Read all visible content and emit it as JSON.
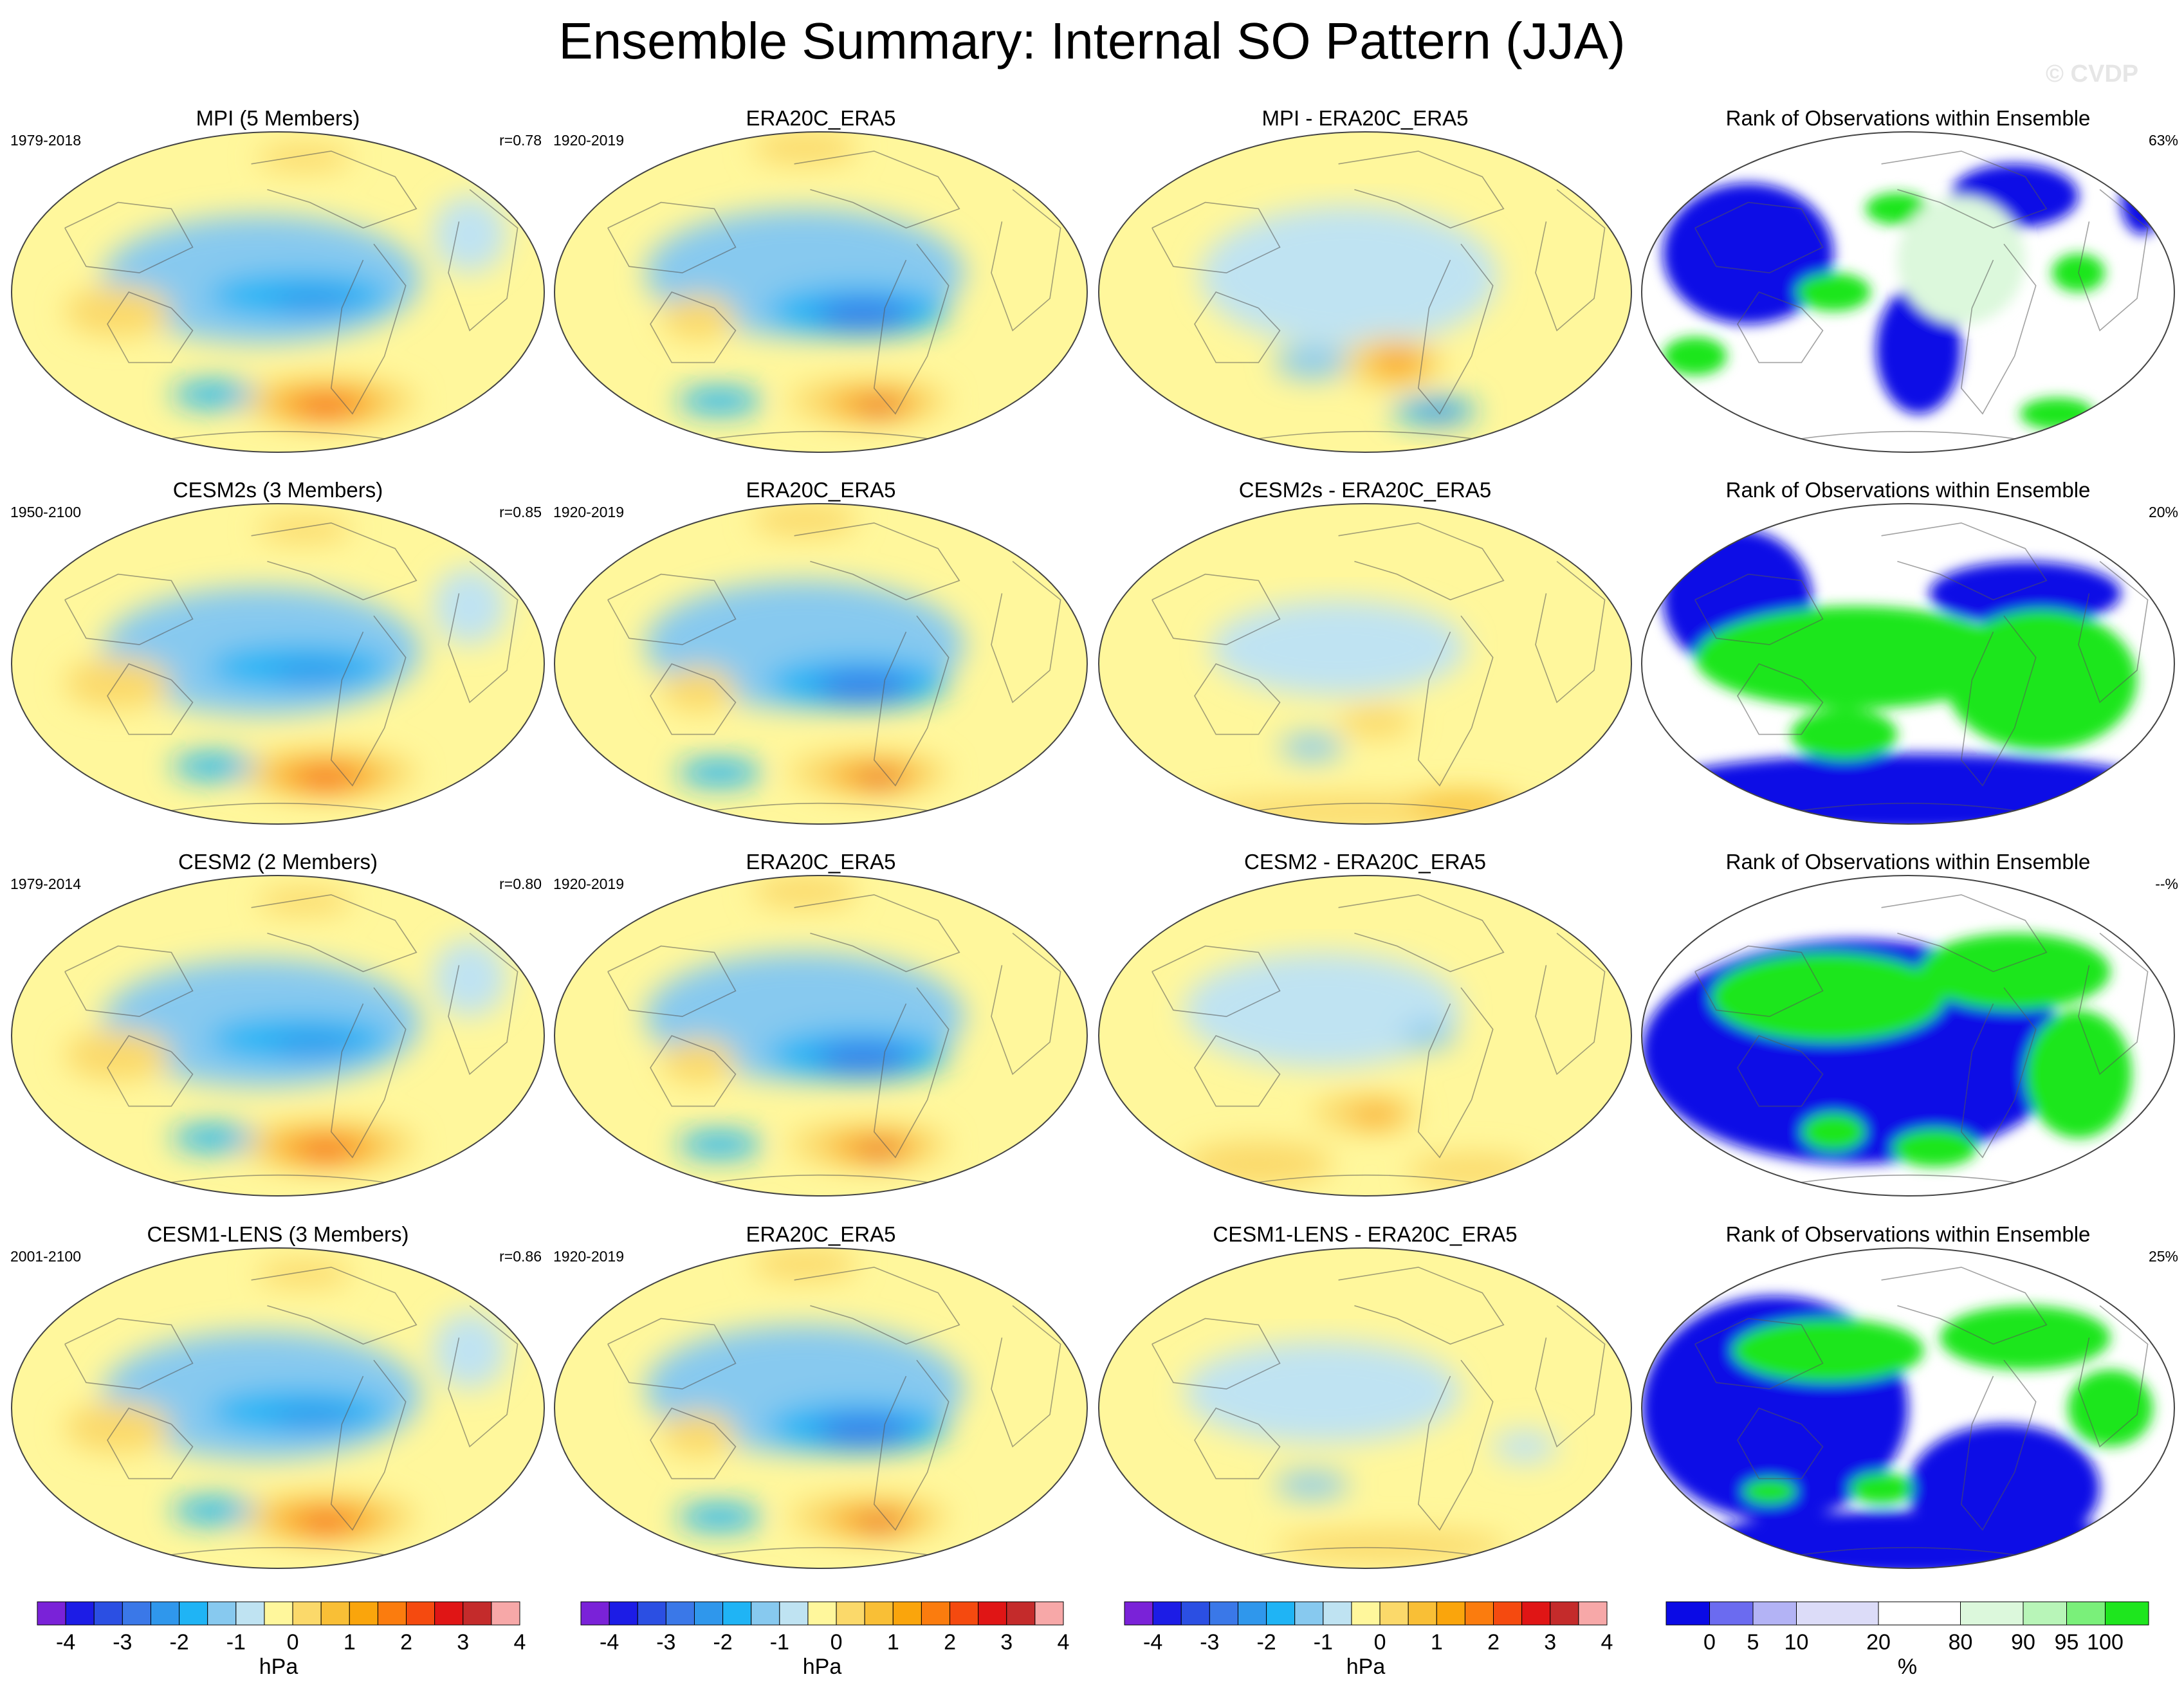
{
  "title": "Ensemble Summary: Internal SO Pattern (JJA)",
  "watermark": "© CVDP",
  "rows": [
    {
      "model": {
        "title": "MPI (5 Members)",
        "years": "1979-2018",
        "corr": "r=0.78"
      },
      "obs": {
        "title": "ERA20C_ERA5",
        "years": "1920-2019"
      },
      "diff": {
        "title": "MPI - ERA20C_ERA5"
      },
      "rank": {
        "title": "Rank of Observations within Ensemble",
        "pct": "63%"
      }
    },
    {
      "model": {
        "title": "CESM2s (3 Members)",
        "years": "1950-2100",
        "corr": "r=0.85"
      },
      "obs": {
        "title": "ERA20C_ERA5",
        "years": "1920-2019"
      },
      "diff": {
        "title": "CESM2s - ERA20C_ERA5"
      },
      "rank": {
        "title": "Rank of Observations within Ensemble",
        "pct": "20%"
      }
    },
    {
      "model": {
        "title": "CESM2 (2 Members)",
        "years": "1979-2014",
        "corr": "r=0.80"
      },
      "obs": {
        "title": "ERA20C_ERA5",
        "years": "1920-2019"
      },
      "diff": {
        "title": "CESM2 - ERA20C_ERA5"
      },
      "rank": {
        "title": "Rank of Observations within Ensemble",
        "pct": "--%"
      }
    },
    {
      "model": {
        "title": "CESM1-LENS (3 Members)",
        "years": "2001-2100",
        "corr": "r=0.86"
      },
      "obs": {
        "title": "ERA20C_ERA5",
        "years": "1920-2019"
      },
      "diff": {
        "title": "CESM1-LENS - ERA20C_ERA5"
      },
      "rank": {
        "title": "Rank of Observations within Ensemble",
        "pct": "25%"
      }
    }
  ],
  "slp_colorbar": {
    "unit": "hPa",
    "tick_labels": [
      "-4",
      "-3",
      "-2",
      "-1",
      "0",
      "1",
      "2",
      "3",
      "4"
    ],
    "colors": [
      "#7a22d8",
      "#1c1ce6",
      "#2b4fe3",
      "#3a78e8",
      "#2f97ec",
      "#1fb4f5",
      "#87c9ef",
      "#bfe3f2",
      "#fff79c",
      "#fbd96a",
      "#f9bf36",
      "#faa50c",
      "#fb7c0e",
      "#f54a0f",
      "#e01515",
      "#c42b2b",
      "#f7a8a8"
    ]
  },
  "rank_colorbar": {
    "unit": "%",
    "tick_labels": [
      "0",
      "5",
      "10",
      "20",
      "80",
      "90",
      "95",
      "100"
    ],
    "colors": [
      "#0a0ae6",
      "#6b6bf0",
      "#b3b3f5",
      "#dcdcf8",
      "#ffffff",
      "#dcf8dc",
      "#b8f5b8",
      "#7af07a",
      "#1ee61e"
    ]
  }
}
